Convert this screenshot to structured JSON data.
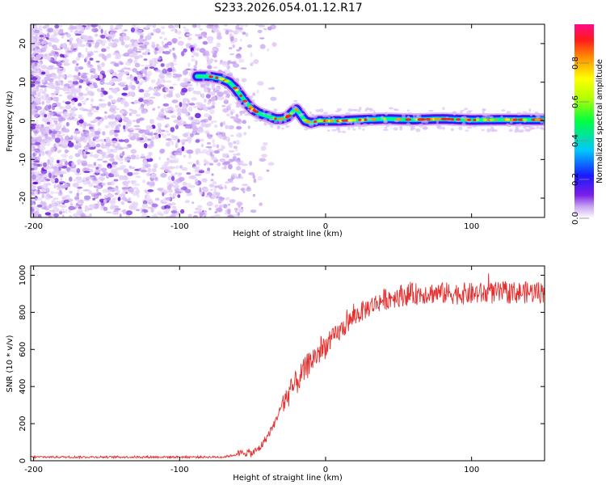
{
  "title": "S233.2026.054.01.12.R17",
  "colors": {
    "snr_line": "#e53030",
    "frame": "#000000"
  },
  "chart_data": [
    {
      "type": "heatmap",
      "name": "spectrogram",
      "title": "S233.2026.054.01.12.R17",
      "xlabel": "Height of straight line (km)",
      "ylabel": "Frequency (Hz)",
      "xlim": [
        -202,
        150
      ],
      "ylim": [
        -25,
        25
      ],
      "x_ticks": [
        -200,
        -100,
        0,
        100
      ],
      "x_tick_labels": [
        "-200",
        "-100",
        "0",
        "100"
      ],
      "y_ticks": [
        20,
        10,
        0,
        -10,
        -20
      ],
      "y_tick_labels": [
        "20",
        "10",
        "0",
        "-10",
        "-20"
      ],
      "noise_region_x": [
        -202,
        -60
      ],
      "ridge": {
        "x": [
          -88,
          -80,
          -72,
          -66,
          -62,
          -58,
          -54,
          -50,
          -46,
          -42,
          -38,
          -34,
          -30,
          -26,
          -22,
          -20,
          -18,
          -14,
          -10,
          -5,
          0,
          10,
          20,
          40,
          60,
          80,
          100,
          120,
          150
        ],
        "y": [
          11.5,
          11.5,
          11,
          10,
          8.5,
          6.5,
          4.5,
          3,
          2,
          1.5,
          1,
          0.5,
          0.5,
          1,
          2.5,
          3,
          2,
          0,
          -0.5,
          0,
          0,
          0,
          0.2,
          0.5,
          0.3,
          0.5,
          0.2,
          0.3,
          0.3
        ]
      },
      "colorbar": {
        "label": "Normalized spectral amplitude",
        "range": [
          0,
          1
        ],
        "ticks": [
          0.0,
          0.2,
          0.4,
          0.6,
          0.8
        ],
        "tick_labels": [
          "0.0",
          "0.2",
          "0.4",
          "0.6",
          "0.8"
        ]
      }
    },
    {
      "type": "line",
      "name": "snr",
      "xlabel": "Height of straight line (km)",
      "ylabel": "SNR (10 * v/v)",
      "xlim": [
        -202,
        150
      ],
      "ylim": [
        0,
        1050
      ],
      "x_ticks": [
        -200,
        -100,
        0,
        100
      ],
      "x_tick_labels": [
        "-200",
        "-100",
        "0",
        "100"
      ],
      "y_ticks": [
        0,
        200,
        400,
        600,
        800,
        1000
      ],
      "y_tick_labels": [
        "0",
        "200",
        "400",
        "600",
        "800",
        "1000"
      ],
      "envelope": {
        "x": [
          -202,
          -100,
          -70,
          -60,
          -55,
          -50,
          -45,
          -40,
          -35,
          -30,
          -20,
          -10,
          0,
          10,
          20,
          30,
          40,
          50,
          70,
          100,
          120,
          150
        ],
        "y": [
          20,
          20,
          20,
          35,
          45,
          40,
          70,
          130,
          200,
          300,
          420,
          540,
          620,
          700,
          780,
          830,
          870,
          890,
          905,
          900,
          905,
          910
        ]
      },
      "noise_amplitude": [
        {
          "x": [
            -202,
            -60
          ],
          "amp": 6
        },
        {
          "x": [
            -60,
            -30
          ],
          "amp": 22
        },
        {
          "x": [
            -30,
            0
          ],
          "amp": 70
        },
        {
          "x": [
            0,
            40
          ],
          "amp": 55
        },
        {
          "x": [
            40,
            150
          ],
          "amp": 60
        }
      ]
    }
  ]
}
